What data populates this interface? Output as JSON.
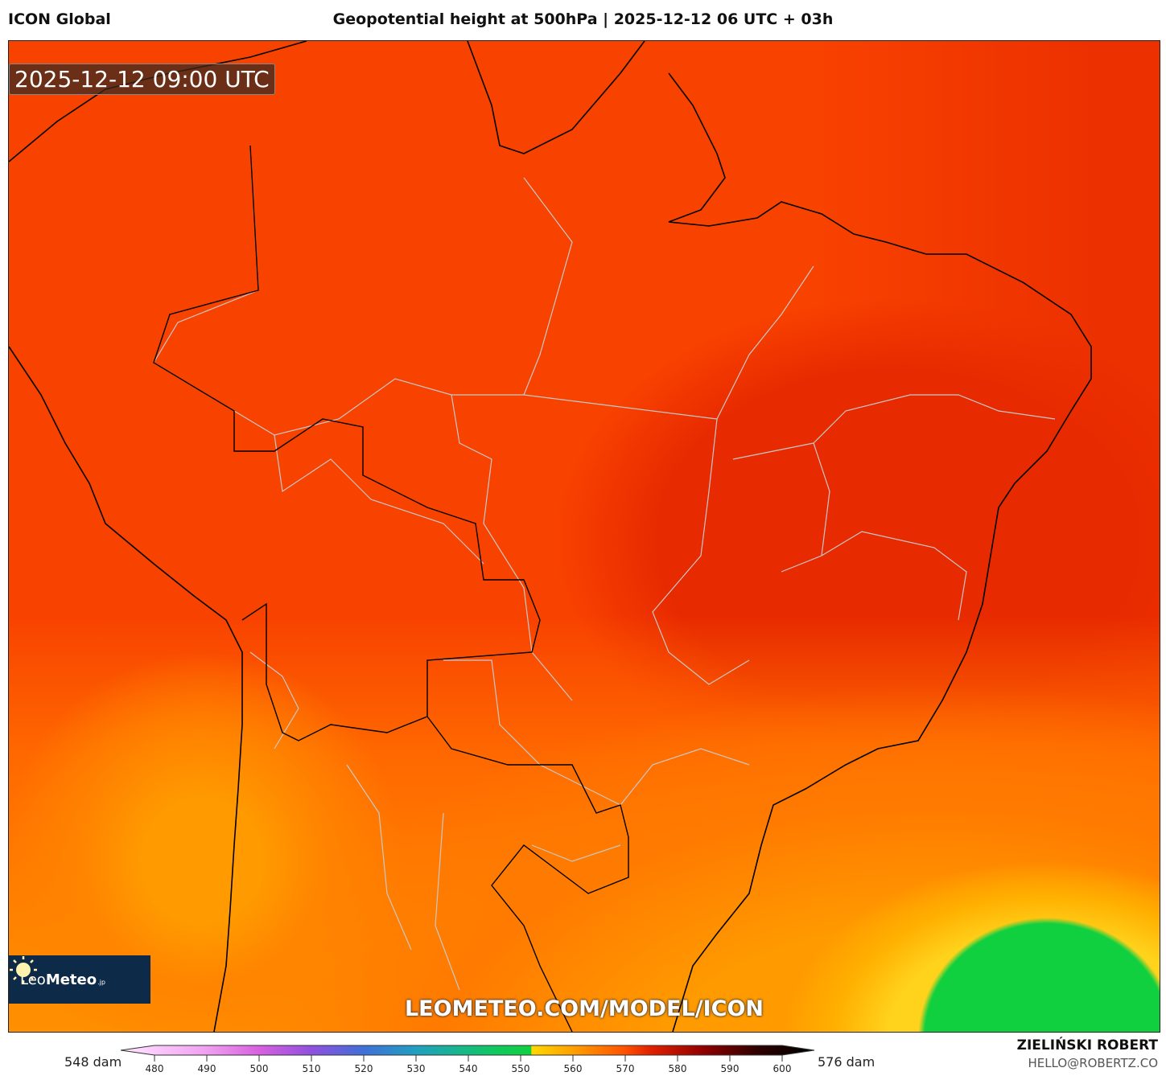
{
  "header": {
    "model": "ICON Global",
    "title": "Geopotential height at 500hPa | 2025-12-12 06 UTC + 03h"
  },
  "map": {
    "valid_time": "2025-12-12 09:00 UTC",
    "watermark": "LEOMETEO.COM/MODEL/ICON",
    "logo": {
      "name_light": "Leo",
      "name_bold": "Meteo",
      "suffix": ".jp"
    },
    "colors": {
      "low": "#10d040",
      "mid": "#ff9a00",
      "high": "#f84200",
      "highest": "#e82a00"
    }
  },
  "colorbar": {
    "min_label": "548 dam",
    "max_label": "576 dam",
    "ticks": [
      "480",
      "490",
      "500",
      "510",
      "520",
      "530",
      "540",
      "550",
      "560",
      "570",
      "580",
      "590",
      "600"
    ],
    "range": [
      475,
      605
    ],
    "stops": [
      [
        475,
        "#ffe0ff"
      ],
      [
        490,
        "#f0a0f0"
      ],
      [
        500,
        "#d860e0"
      ],
      [
        510,
        "#9050e0"
      ],
      [
        520,
        "#4070d8"
      ],
      [
        530,
        "#20a0c0"
      ],
      [
        545,
        "#10c860"
      ],
      [
        552,
        "#10d040"
      ],
      [
        552.1,
        "#ffd800"
      ],
      [
        560,
        "#ffa000"
      ],
      [
        570,
        "#ff5000"
      ],
      [
        575,
        "#e02000"
      ],
      [
        585,
        "#900000"
      ],
      [
        595,
        "#300000"
      ],
      [
        605,
        "#000000"
      ]
    ]
  },
  "footer": {
    "author": "ZIELIŃSKI ROBERT",
    "email": "HELLO@ROBERTZ.CO"
  }
}
